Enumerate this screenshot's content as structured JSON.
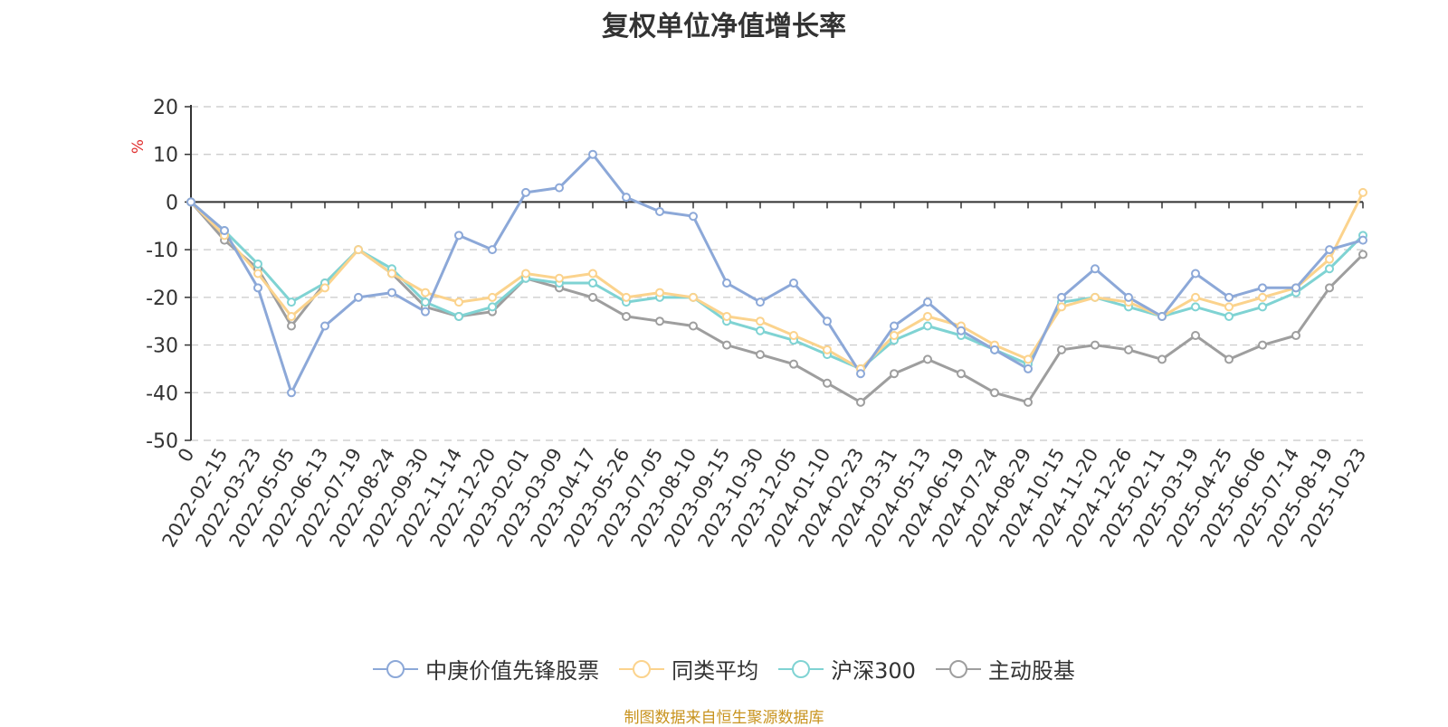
{
  "title": "复权单位净值增长率",
  "source": "制图数据来自恒生聚源数据库",
  "chart_data": {
    "type": "line",
    "title": "复权单位净值增长率",
    "ylabel": "%",
    "ylim": [
      -50,
      20
    ],
    "yticks": [
      20,
      10,
      0,
      -10,
      -20,
      -30,
      -40,
      -50
    ],
    "grid": true,
    "legend_position": "bottom",
    "x": [
      "0",
      "2022-02-15",
      "2022-03-23",
      "2022-05-05",
      "2022-06-13",
      "2022-07-19",
      "2022-08-24",
      "2022-09-30",
      "2022-11-14",
      "2022-12-20",
      "2023-02-01",
      "2023-03-09",
      "2023-04-17",
      "2023-05-26",
      "2023-07-05",
      "2023-08-10",
      "2023-09-15",
      "2023-10-30",
      "2023-12-05",
      "2024-01-10",
      "2024-02-23",
      "2024-03-31",
      "2024-05-13",
      "2024-06-19",
      "2024-07-24",
      "2024-08-29",
      "2024-10-15",
      "2024-11-20",
      "2024-12-26",
      "2025-02-11",
      "2025-03-19",
      "2025-04-25",
      "2025-06-06",
      "2025-07-14",
      "2025-08-19",
      "2025-10-23"
    ],
    "series": [
      {
        "name": "中庚价值先锋股票",
        "color": "#8ca8d8",
        "values": [
          0,
          -6,
          -18,
          -40,
          -26,
          -20,
          -19,
          -23,
          -7,
          -10,
          2,
          3,
          10,
          1,
          -2,
          -3,
          -17,
          -21,
          -17,
          -25,
          -36,
          -26,
          -21,
          -27,
          -31,
          -35,
          -20,
          -14,
          -20,
          -24,
          -15,
          -20,
          -18,
          -18,
          -10,
          -8
        ]
      },
      {
        "name": "同类平均",
        "color": "#fbd38d",
        "values": [
          0,
          -7,
          -15,
          -24,
          -18,
          -10,
          -15,
          -19,
          -21,
          -20,
          -15,
          -16,
          -15,
          -20,
          -19,
          -20,
          -24,
          -25,
          -28,
          -31,
          -35,
          -28,
          -24,
          -26,
          -30,
          -33,
          -22,
          -20,
          -21,
          -24,
          -20,
          -22,
          -20,
          -18,
          -12,
          2
        ]
      },
      {
        "name": "沪深300",
        "color": "#7fd3d3",
        "values": [
          0,
          -6,
          -13,
          -21,
          -17,
          -10,
          -14,
          -21,
          -24,
          -22,
          -16,
          -17,
          -17,
          -21,
          -20,
          -20,
          -25,
          -27,
          -29,
          -32,
          -35,
          -29,
          -26,
          -28,
          -31,
          -34,
          -21,
          -20,
          -22,
          -24,
          -22,
          -24,
          -22,
          -19,
          -14,
          -7
        ]
      },
      {
        "name": "主动股基",
        "color": "#9e9e9e",
        "values": [
          0,
          -8,
          -14,
          -26,
          -17,
          -10,
          -15,
          -22,
          -24,
          -23,
          -16,
          -18,
          -20,
          -24,
          -25,
          -26,
          -30,
          -32,
          -34,
          -38,
          -42,
          -36,
          -33,
          -36,
          -40,
          -42,
          -31,
          -30,
          -31,
          -33,
          -28,
          -33,
          -30,
          -28,
          -18,
          -11
        ]
      }
    ]
  },
  "legend": {
    "items": [
      "中庚价值先锋股票",
      "同类平均",
      "沪深300",
      "主动股基"
    ]
  }
}
